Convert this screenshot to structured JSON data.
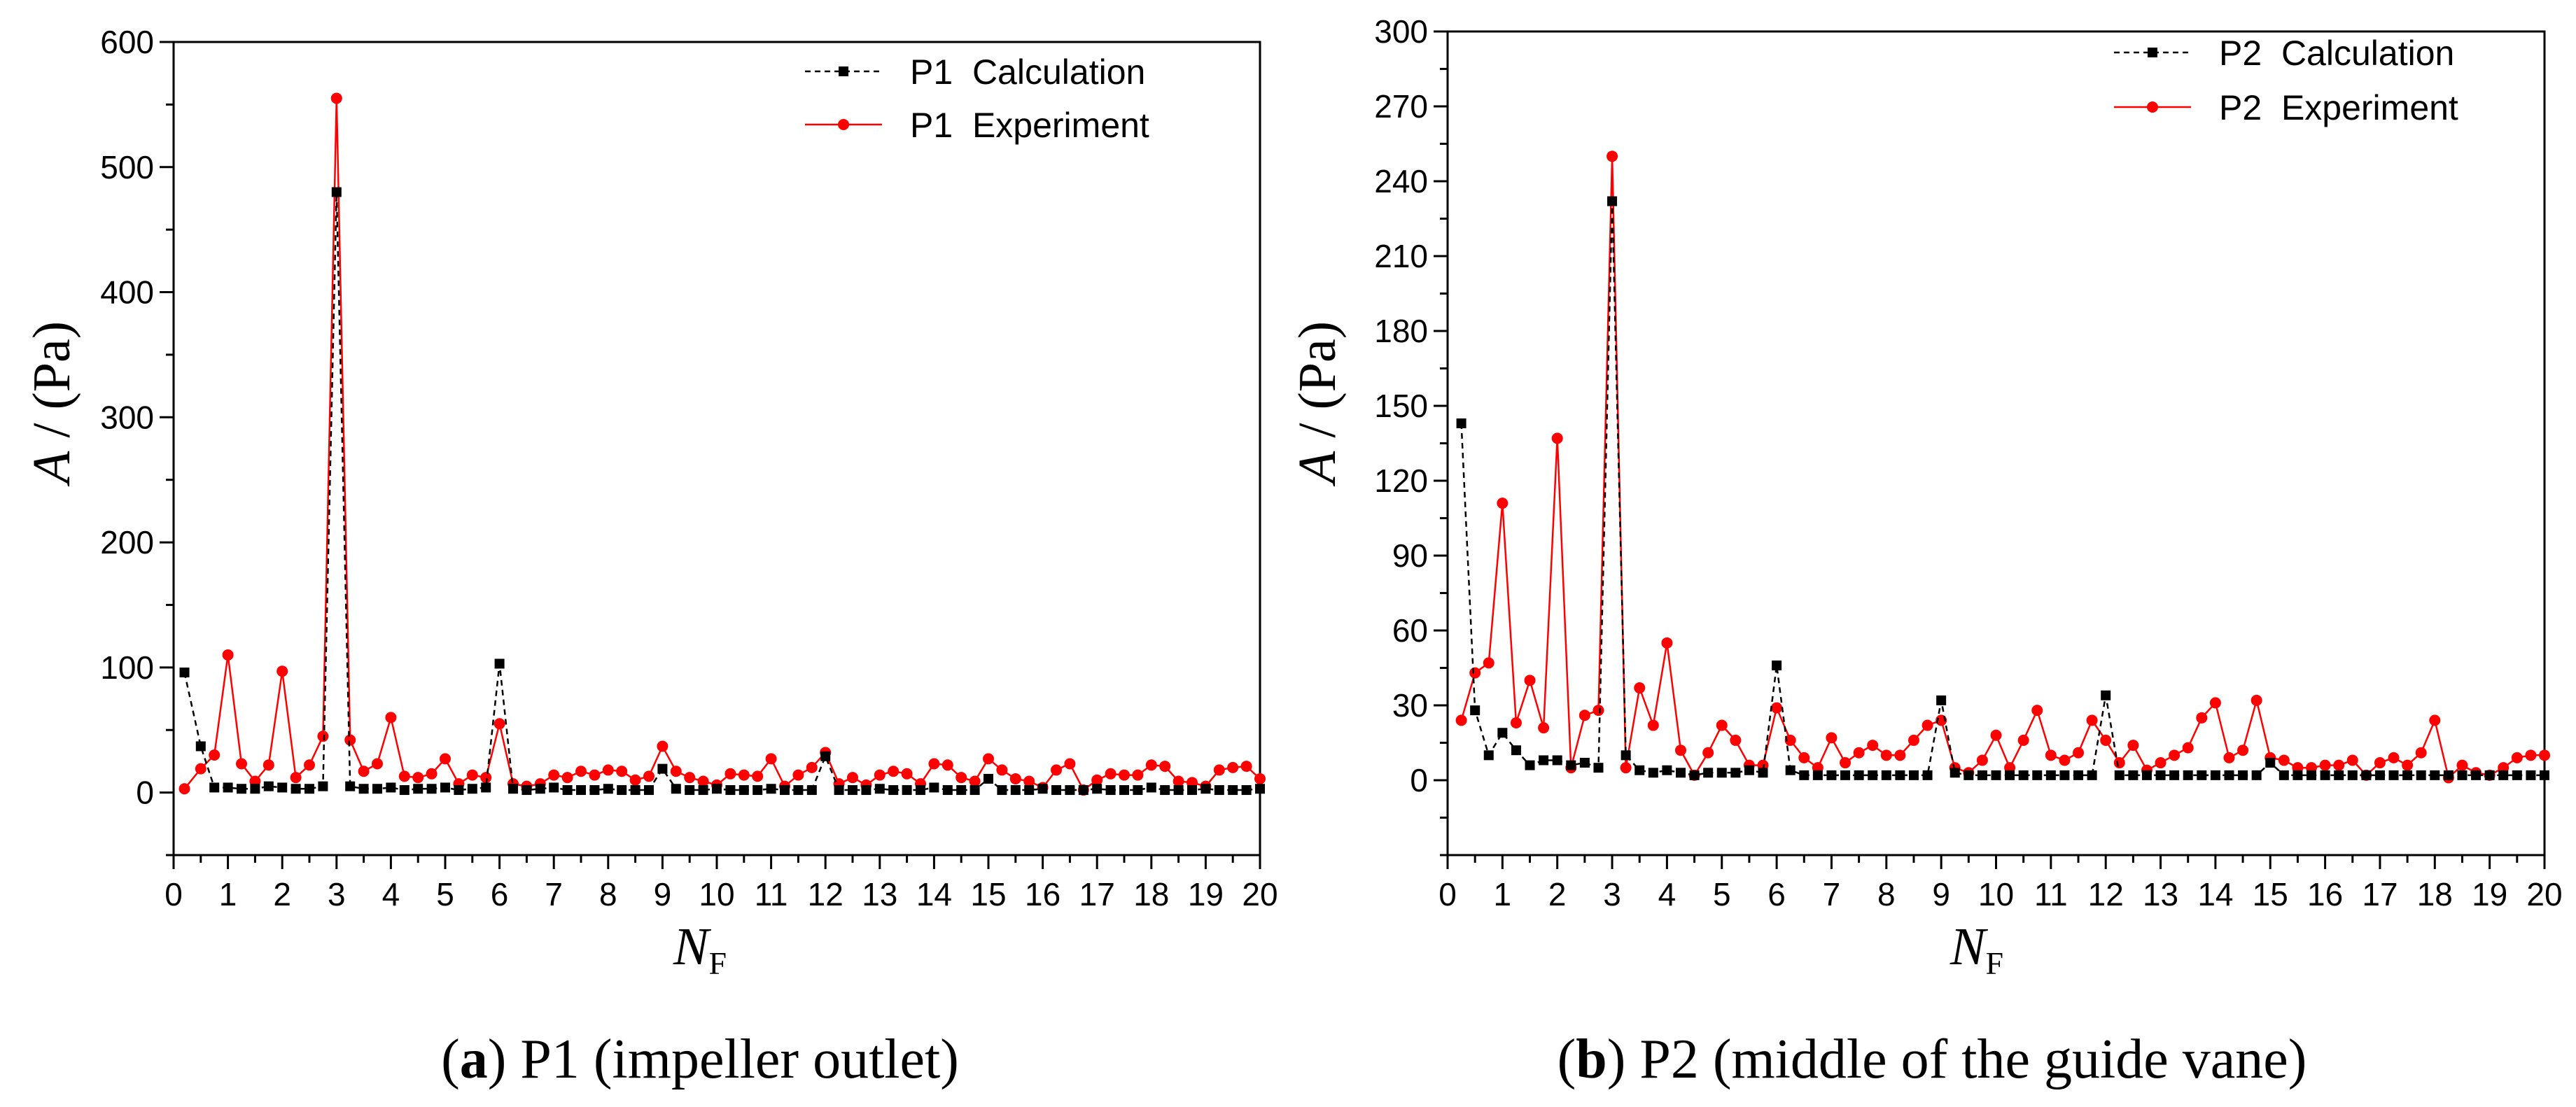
{
  "chart_data": [
    {
      "type": "line",
      "caption_letter": "a",
      "caption_text": "P1 (impeller outlet)",
      "ylabel_var": "A",
      "ylabel_unit": " / (Pa)",
      "xlabel_var": "N",
      "xlabel_sub": "F",
      "xlim": [
        0,
        20
      ],
      "ylim": [
        -50,
        600
      ],
      "xticks": [
        "0",
        "0.5",
        "1",
        "1.5",
        "2",
        "2.5",
        "3",
        "3.5",
        "4",
        "4.5",
        "5",
        "5.5",
        "6",
        "6.5",
        "7",
        "7.5",
        "8",
        "8.5",
        "9",
        "9.5",
        "10",
        "10.5",
        "11",
        "11.5",
        "12",
        "12.5",
        "13",
        "13.5",
        "14",
        "14.5",
        "15",
        "15.5",
        "16",
        "16.5",
        "17",
        "17.5",
        "18",
        "18.5",
        "19",
        "19.5",
        "20"
      ],
      "xtick_labels": [
        "0",
        "1",
        "2",
        "3",
        "4",
        "5",
        "6",
        "7",
        "8",
        "9",
        "10",
        "11",
        "12",
        "13",
        "14",
        "15",
        "16",
        "17",
        "18",
        "19",
        "20"
      ],
      "yticks": [
        0,
        100,
        200,
        300,
        400,
        500,
        600
      ],
      "series": [
        {
          "name": "P1  Calculation",
          "color": "#000000",
          "marker": "square",
          "x": [
            0.2,
            0.5,
            0.75,
            1,
            1.25,
            1.5,
            1.75,
            2,
            2.25,
            2.5,
            2.75,
            3,
            3.25,
            3.5,
            3.75,
            4,
            4.25,
            4.5,
            4.75,
            5,
            5.25,
            5.5,
            5.75,
            6,
            6.25,
            6.5,
            6.75,
            7,
            7.25,
            7.5,
            7.75,
            8,
            8.25,
            8.5,
            8.75,
            9,
            9.25,
            9.5,
            9.75,
            10,
            10.25,
            10.5,
            10.75,
            11,
            11.25,
            11.5,
            11.75,
            12,
            12.25,
            12.5,
            12.75,
            13,
            13.25,
            13.5,
            13.75,
            14,
            14.25,
            14.5,
            14.75,
            15,
            15.25,
            15.5,
            15.75,
            16,
            16.25,
            16.5,
            16.75,
            17,
            17.25,
            17.5,
            17.75,
            18,
            18.25,
            18.5,
            18.75,
            19,
            19.25,
            19.5,
            19.75,
            20
          ],
          "values": [
            96,
            37,
            4,
            4,
            3,
            3,
            5,
            4,
            3,
            3,
            5,
            480,
            5,
            3,
            3,
            4,
            2,
            3,
            3,
            4,
            2,
            3,
            4,
            103,
            3,
            2,
            3,
            4,
            2,
            2,
            2,
            3,
            2,
            2,
            2,
            19,
            3,
            2,
            2,
            3,
            2,
            2,
            2,
            3,
            2,
            2,
            2,
            29,
            2,
            2,
            2,
            3,
            2,
            2,
            2,
            4,
            2,
            2,
            2,
            11,
            2,
            2,
            2,
            3,
            2,
            2,
            2,
            3,
            2,
            2,
            2,
            4,
            2,
            2,
            2,
            3,
            2,
            2,
            2,
            3
          ]
        },
        {
          "name": "P1  Experiment",
          "color": "#ff0000",
          "marker": "circle",
          "x": [
            0.2,
            0.5,
            0.75,
            1,
            1.25,
            1.5,
            1.75,
            2,
            2.25,
            2.5,
            2.75,
            3,
            3.25,
            3.5,
            3.75,
            4,
            4.25,
            4.5,
            4.75,
            5,
            5.25,
            5.5,
            5.75,
            6,
            6.25,
            6.5,
            6.75,
            7,
            7.25,
            7.5,
            7.75,
            8,
            8.25,
            8.5,
            8.75,
            9,
            9.25,
            9.5,
            9.75,
            10,
            10.25,
            10.5,
            10.75,
            11,
            11.25,
            11.5,
            11.75,
            12,
            12.25,
            12.5,
            12.75,
            13,
            13.25,
            13.5,
            13.75,
            14,
            14.25,
            14.5,
            14.75,
            15,
            15.25,
            15.5,
            15.75,
            16,
            16.25,
            16.5,
            16.75,
            17,
            17.25,
            17.5,
            17.75,
            18,
            18.25,
            18.5,
            18.75,
            19,
            19.25,
            19.5,
            19.75,
            20
          ],
          "values": [
            3,
            19,
            30,
            110,
            23,
            9,
            22,
            97,
            12,
            22,
            45,
            555,
            42,
            17,
            23,
            60,
            13,
            12,
            15,
            27,
            7,
            14,
            12,
            55,
            7,
            5,
            7,
            14,
            12,
            17,
            14,
            18,
            17,
            10,
            13,
            37,
            17,
            12,
            9,
            6,
            15,
            14,
            13,
            27,
            5,
            14,
            20,
            32,
            7,
            12,
            6,
            14,
            17,
            15,
            7,
            23,
            22,
            12,
            9,
            27,
            18,
            11,
            9,
            4,
            18,
            23,
            2,
            10,
            15,
            14,
            14,
            22,
            21,
            9,
            8,
            5,
            18,
            20,
            21,
            11
          ]
        }
      ]
    },
    {
      "type": "line",
      "caption_letter": "b",
      "caption_text": "P2 (middle of the guide vane)",
      "ylabel_var": "A",
      "ylabel_unit": " / (Pa)",
      "xlabel_var": "N",
      "xlabel_sub": "F",
      "xlim": [
        0,
        20
      ],
      "ylim": [
        -30,
        300
      ],
      "xticks": [
        "0",
        "0.5",
        "1",
        "1.5",
        "2",
        "2.5",
        "3",
        "3.5",
        "4",
        "4.5",
        "5",
        "5.5",
        "6",
        "6.5",
        "7",
        "7.5",
        "8",
        "8.5",
        "9",
        "9.5",
        "10",
        "10.5",
        "11",
        "11.5",
        "12",
        "12.5",
        "13",
        "13.5",
        "14",
        "14.5",
        "15",
        "15.5",
        "16",
        "16.5",
        "17",
        "17.5",
        "18",
        "18.5",
        "19",
        "19.5",
        "20"
      ],
      "xtick_labels": [
        "0",
        "1",
        "2",
        "3",
        "4",
        "5",
        "6",
        "7",
        "8",
        "9",
        "10",
        "11",
        "12",
        "13",
        "14",
        "15",
        "16",
        "17",
        "18",
        "19",
        "20"
      ],
      "yticks": [
        0,
        30,
        60,
        90,
        120,
        150,
        180,
        210,
        240,
        270,
        300
      ],
      "series": [
        {
          "name": "P2  Calculation",
          "color": "#000000",
          "marker": "square",
          "x": [
            0.25,
            0.5,
            0.75,
            1,
            1.25,
            1.5,
            1.75,
            2,
            2.25,
            2.5,
            2.75,
            3,
            3.25,
            3.5,
            3.75,
            4,
            4.25,
            4.5,
            4.75,
            5,
            5.25,
            5.5,
            5.75,
            6,
            6.25,
            6.5,
            6.75,
            7,
            7.25,
            7.5,
            7.75,
            8,
            8.25,
            8.5,
            8.75,
            9,
            9.25,
            9.5,
            9.75,
            10,
            10.25,
            10.5,
            10.75,
            11,
            11.25,
            11.5,
            11.75,
            12,
            12.25,
            12.5,
            12.75,
            13,
            13.25,
            13.5,
            13.75,
            14,
            14.25,
            14.5,
            14.75,
            15,
            15.25,
            15.5,
            15.75,
            16,
            16.25,
            16.5,
            16.75,
            17,
            17.25,
            17.5,
            17.75,
            18,
            18.25,
            18.5,
            18.75,
            19,
            19.25,
            19.5,
            19.75,
            20
          ],
          "values": [
            143,
            28,
            10,
            19,
            12,
            6,
            8,
            8,
            6,
            7,
            5,
            232,
            10,
            4,
            3,
            4,
            3,
            2,
            3,
            3,
            3,
            4,
            3,
            46,
            4,
            2,
            2,
            2,
            2,
            2,
            2,
            2,
            2,
            2,
            2,
            32,
            3,
            2,
            2,
            2,
            2,
            2,
            2,
            2,
            2,
            2,
            2,
            34,
            2,
            2,
            2,
            2,
            2,
            2,
            2,
            2,
            2,
            2,
            2,
            7,
            2,
            2,
            2,
            2,
            2,
            2,
            2,
            2,
            2,
            2,
            2,
            2,
            2,
            2,
            2,
            2,
            2,
            2,
            2,
            2
          ]
        },
        {
          "name": "P2  Experiment",
          "color": "#ff0000",
          "marker": "circle",
          "x": [
            0.25,
            0.5,
            0.75,
            1,
            1.25,
            1.5,
            1.75,
            2,
            2.25,
            2.5,
            2.75,
            3,
            3.25,
            3.5,
            3.75,
            4,
            4.25,
            4.5,
            4.75,
            5,
            5.25,
            5.5,
            5.75,
            6,
            6.25,
            6.5,
            6.75,
            7,
            7.25,
            7.5,
            7.75,
            8,
            8.25,
            8.5,
            8.75,
            9,
            9.25,
            9.5,
            9.75,
            10,
            10.25,
            10.5,
            10.75,
            11,
            11.25,
            11.5,
            11.75,
            12,
            12.25,
            12.5,
            12.75,
            13,
            13.25,
            13.5,
            13.75,
            14,
            14.25,
            14.5,
            14.75,
            15,
            15.25,
            15.5,
            15.75,
            16,
            16.25,
            16.5,
            16.75,
            17,
            17.25,
            17.5,
            17.75,
            18,
            18.25,
            18.5,
            18.75,
            19,
            19.25,
            19.5,
            19.75,
            20
          ],
          "values": [
            24,
            43,
            47,
            111,
            23,
            40,
            21,
            137,
            5,
            26,
            28,
            250,
            5,
            37,
            22,
            55,
            12,
            2,
            11,
            22,
            16,
            6,
            6,
            29,
            16,
            9,
            5,
            17,
            7,
            11,
            14,
            10,
            10,
            16,
            22,
            24,
            5,
            3,
            8,
            18,
            5,
            16,
            28,
            10,
            8,
            11,
            24,
            16,
            7,
            14,
            4,
            7,
            10,
            13,
            25,
            31,
            9,
            12,
            32,
            9,
            8,
            5,
            5,
            6,
            6,
            8,
            2,
            7,
            9,
            6,
            11,
            24,
            1,
            6,
            3,
            2,
            5,
            9,
            10,
            10
          ]
        }
      ]
    }
  ]
}
